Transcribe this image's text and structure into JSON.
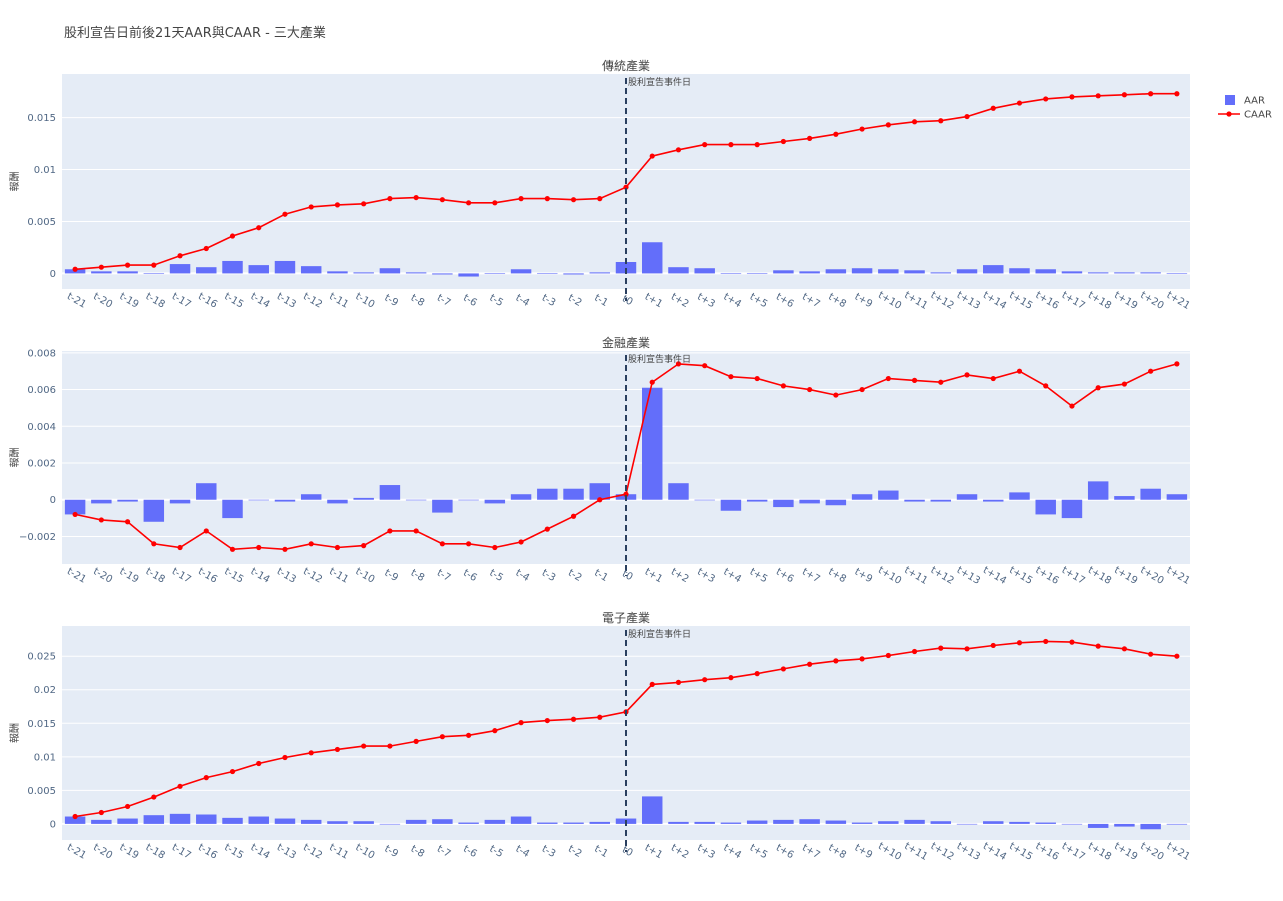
{
  "title": "股利宣告日前後21天AAR與CAAR - 三大產業",
  "legend": {
    "position": "top-right",
    "items": [
      "AAR",
      "CAAR"
    ]
  },
  "colors": {
    "aar": "#636efa",
    "caar": "#ff0000",
    "plot_bg": "#e5ecf6",
    "grid": "#ffffff",
    "event_line": "#2a3f5f"
  },
  "chart_data": [
    {
      "type": "bar+line",
      "title": "傳統產業",
      "ylabel": "報酬",
      "annotation": "股利宣告事件日",
      "event_category": "t0",
      "ylim": [
        -0.0015,
        0.0192
      ],
      "yticks": [
        0,
        0.005,
        0.01,
        0.015
      ],
      "ytick_labels": [
        "0",
        "0.005",
        "0.01",
        "0.015"
      ],
      "categories": [
        "t-21",
        "t-20",
        "t-19",
        "t-18",
        "t-17",
        "t-16",
        "t-15",
        "t-14",
        "t-13",
        "t-12",
        "t-11",
        "t-10",
        "t-9",
        "t-8",
        "t-7",
        "t-6",
        "t-5",
        "t-4",
        "t-3",
        "t-2",
        "t-1",
        "t0",
        "t+1",
        "t+2",
        "t+3",
        "t+4",
        "t+5",
        "t+6",
        "t+7",
        "t+8",
        "t+9",
        "t+10",
        "t+11",
        "t+12",
        "t+13",
        "t+14",
        "t+15",
        "t+16",
        "t+17",
        "t+18",
        "t+19",
        "t+20",
        "t+21"
      ],
      "series": [
        {
          "name": "AAR",
          "type": "bar",
          "values": [
            0.0004,
            0.0002,
            0.0002,
            0.0,
            0.0009,
            0.0006,
            0.0012,
            0.0008,
            0.0012,
            0.0007,
            0.0002,
            0.0001,
            0.0005,
            0.0001,
            -0.0001,
            -0.0003,
            0.0,
            0.0004,
            0.0,
            -0.0001,
            0.0001,
            0.0011,
            0.003,
            0.0006,
            0.0005,
            0.0,
            0.0,
            0.0003,
            0.0002,
            0.0004,
            0.0005,
            0.0004,
            0.0003,
            0.0001,
            0.0004,
            0.0008,
            0.0005,
            0.0004,
            0.0002,
            0.0001,
            0.0001,
            0.0001,
            0.0
          ]
        },
        {
          "name": "CAAR",
          "type": "line",
          "values": [
            0.0004,
            0.0006,
            0.0008,
            0.0008,
            0.0017,
            0.0024,
            0.0036,
            0.0044,
            0.0057,
            0.0064,
            0.0066,
            0.0067,
            0.0072,
            0.0073,
            0.0071,
            0.0068,
            0.0068,
            0.0072,
            0.0072,
            0.0071,
            0.0072,
            0.0083,
            0.0113,
            0.0119,
            0.0124,
            0.0124,
            0.0124,
            0.0127,
            0.013,
            0.0134,
            0.0139,
            0.0143,
            0.0146,
            0.0147,
            0.0151,
            0.0159,
            0.0164,
            0.0168,
            0.017,
            0.0171,
            0.0172,
            0.0173,
            0.0173
          ]
        }
      ]
    },
    {
      "type": "bar+line",
      "title": "金融產業",
      "ylabel": "報酬",
      "annotation": "股利宣告事件日",
      "event_category": "t0",
      "ylim": [
        -0.0035,
        0.0081
      ],
      "yticks": [
        -0.002,
        0,
        0.002,
        0.004,
        0.006,
        0.008
      ],
      "ytick_labels": [
        "−0.002",
        "0",
        "0.002",
        "0.004",
        "0.006",
        "0.008"
      ],
      "categories": [
        "t-21",
        "t-20",
        "t-19",
        "t-18",
        "t-17",
        "t-16",
        "t-15",
        "t-14",
        "t-13",
        "t-12",
        "t-11",
        "t-10",
        "t-9",
        "t-8",
        "t-7",
        "t-6",
        "t-5",
        "t-4",
        "t-3",
        "t-2",
        "t-1",
        "t0",
        "t+1",
        "t+2",
        "t+3",
        "t+4",
        "t+5",
        "t+6",
        "t+7",
        "t+8",
        "t+9",
        "t+10",
        "t+11",
        "t+12",
        "t+13",
        "t+14",
        "t+15",
        "t+16",
        "t+17",
        "t+18",
        "t+19",
        "t+20",
        "t+21"
      ],
      "series": [
        {
          "name": "AAR",
          "type": "bar",
          "values": [
            -0.0008,
            -0.0002,
            -0.0001,
            -0.0012,
            -0.0002,
            0.0009,
            -0.001,
            0.0,
            -0.0001,
            0.0003,
            -0.0002,
            0.0001,
            0.0008,
            0.0,
            -0.0007,
            0.0,
            -0.0002,
            0.0003,
            0.0006,
            0.0006,
            0.0009,
            0.0003,
            0.0061,
            0.0009,
            0.0,
            -0.0006,
            -0.0001,
            -0.0004,
            -0.0002,
            -0.0003,
            0.0003,
            0.0005,
            -0.0001,
            -0.0001,
            0.0003,
            -0.0001,
            0.0004,
            -0.0008,
            -0.001,
            0.001,
            0.0002,
            0.0006,
            0.0003
          ]
        },
        {
          "name": "CAAR",
          "type": "line",
          "values": [
            -0.0008,
            -0.0011,
            -0.0012,
            -0.0024,
            -0.0026,
            -0.0017,
            -0.0027,
            -0.0026,
            -0.0027,
            -0.0024,
            -0.0026,
            -0.0025,
            -0.0017,
            -0.0017,
            -0.0024,
            -0.0024,
            -0.0026,
            -0.0023,
            -0.0016,
            -0.0009,
            0.0,
            0.0003,
            0.0064,
            0.0074,
            0.0073,
            0.0067,
            0.0066,
            0.0062,
            0.006,
            0.0057,
            0.006,
            0.0066,
            0.0065,
            0.0064,
            0.0068,
            0.0066,
            0.007,
            0.0062,
            0.0051,
            0.0061,
            0.0063,
            0.007,
            0.0074
          ]
        }
      ]
    },
    {
      "type": "bar+line",
      "title": "電子產業",
      "ylabel": "報酬",
      "annotation": "股利宣告事件日",
      "event_category": "t0",
      "ylim": [
        -0.0024,
        0.0295
      ],
      "yticks": [
        0,
        0.005,
        0.01,
        0.015,
        0.02,
        0.025
      ],
      "ytick_labels": [
        "0",
        "0.005",
        "0.01",
        "0.015",
        "0.02",
        "0.025"
      ],
      "categories": [
        "t-21",
        "t-20",
        "t-19",
        "t-18",
        "t-17",
        "t-16",
        "t-15",
        "t-14",
        "t-13",
        "t-12",
        "t-11",
        "t-10",
        "t-9",
        "t-8",
        "t-7",
        "t-6",
        "t-5",
        "t-4",
        "t-3",
        "t-2",
        "t-1",
        "t0",
        "t+1",
        "t+2",
        "t+3",
        "t+4",
        "t+5",
        "t+6",
        "t+7",
        "t+8",
        "t+9",
        "t+10",
        "t+11",
        "t+12",
        "t+13",
        "t+14",
        "t+15",
        "t+16",
        "t+17",
        "t+18",
        "t+19",
        "t+20",
        "t+21"
      ],
      "series": [
        {
          "name": "AAR",
          "type": "bar",
          "values": [
            0.0011,
            0.0006,
            0.0008,
            0.0013,
            0.0015,
            0.0014,
            0.0009,
            0.0011,
            0.0008,
            0.0006,
            0.0004,
            0.0004,
            0.0,
            0.0006,
            0.0007,
            0.0002,
            0.0006,
            0.0011,
            0.0002,
            0.0002,
            0.0003,
            0.0008,
            0.0041,
            0.0003,
            0.0003,
            0.0002,
            0.0005,
            0.0006,
            0.0007,
            0.0005,
            0.0002,
            0.0004,
            0.0006,
            0.0004,
            0.0,
            0.0004,
            0.0003,
            0.0002,
            0.0,
            -0.0006,
            -0.0004,
            -0.0008,
            -0.0001
          ]
        },
        {
          "name": "CAAR",
          "type": "line",
          "values": [
            0.0011,
            0.0017,
            0.0026,
            0.004,
            0.0056,
            0.0069,
            0.0078,
            0.009,
            0.0099,
            0.0106,
            0.0111,
            0.0116,
            0.0116,
            0.0123,
            0.013,
            0.0132,
            0.0139,
            0.0151,
            0.0154,
            0.0156,
            0.0159,
            0.0167,
            0.0208,
            0.0211,
            0.0215,
            0.0218,
            0.0224,
            0.0231,
            0.0238,
            0.0243,
            0.0246,
            0.0251,
            0.0257,
            0.0262,
            0.0261,
            0.0266,
            0.027,
            0.0272,
            0.0271,
            0.0265,
            0.0261,
            0.0253,
            0.025
          ]
        }
      ]
    }
  ]
}
